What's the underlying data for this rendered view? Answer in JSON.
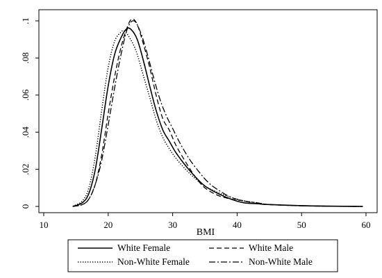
{
  "chart_data": {
    "type": "line",
    "title": "",
    "xlabel": "BMI",
    "ylabel": "",
    "xlim": [
      10,
      60
    ],
    "ylim": [
      0,
      0.1
    ],
    "x_ticks": [
      10,
      20,
      30,
      40,
      50,
      60
    ],
    "x_tick_labels": [
      "10",
      "20",
      "30",
      "40",
      "50",
      "60"
    ],
    "y_ticks": [
      0,
      0.02,
      0.04,
      0.06,
      0.08,
      0.1
    ],
    "y_tick_labels": [
      "0",
      ".02",
      ".04",
      ".06",
      ".08",
      ".1"
    ],
    "grid": false,
    "legend_position": "bottom",
    "series": [
      {
        "name": "White Female",
        "style": "solid",
        "points": [
          [
            14.5,
            0
          ],
          [
            16,
            0.002
          ],
          [
            17,
            0.007
          ],
          [
            18,
            0.02
          ],
          [
            19,
            0.042
          ],
          [
            20,
            0.065
          ],
          [
            21,
            0.082
          ],
          [
            22,
            0.091
          ],
          [
            22.8,
            0.0955
          ],
          [
            23.5,
            0.0955
          ],
          [
            24.5,
            0.09
          ],
          [
            25.5,
            0.078
          ],
          [
            26.5,
            0.064
          ],
          [
            27.5,
            0.051
          ],
          [
            28.5,
            0.041
          ],
          [
            29.5,
            0.035
          ],
          [
            30.5,
            0.029
          ],
          [
            32,
            0.022
          ],
          [
            33.5,
            0.016
          ],
          [
            35,
            0.011
          ],
          [
            37,
            0.007
          ],
          [
            39,
            0.004
          ],
          [
            41,
            0.002
          ],
          [
            43,
            0.0015
          ],
          [
            45,
            0.001
          ],
          [
            50,
            0.0004
          ],
          [
            55,
            0.0001
          ],
          [
            59.5,
            0
          ]
        ]
      },
      {
        "name": "White Male",
        "style": "dashed",
        "points": [
          [
            14.5,
            0
          ],
          [
            16,
            0.001
          ],
          [
            17,
            0.004
          ],
          [
            18,
            0.012
          ],
          [
            19,
            0.028
          ],
          [
            20,
            0.05
          ],
          [
            21,
            0.07
          ],
          [
            22,
            0.086
          ],
          [
            23,
            0.097
          ],
          [
            23.7,
            0.101
          ],
          [
            24.5,
            0.098
          ],
          [
            25.5,
            0.087
          ],
          [
            26.5,
            0.074
          ],
          [
            27.5,
            0.059
          ],
          [
            28.5,
            0.047
          ],
          [
            29.5,
            0.041
          ],
          [
            30.5,
            0.033
          ],
          [
            32,
            0.024
          ],
          [
            33.5,
            0.016
          ],
          [
            35,
            0.01
          ],
          [
            37,
            0.006
          ],
          [
            39,
            0.004
          ],
          [
            41,
            0.003
          ],
          [
            43,
            0.0015
          ],
          [
            45,
            0.001
          ],
          [
            50,
            0.0003
          ],
          [
            55,
            0.0001
          ],
          [
            59.5,
            0
          ]
        ]
      },
      {
        "name": "Non-White Female",
        "style": "dotted",
        "points": [
          [
            14.5,
            0
          ],
          [
            16,
            0.003
          ],
          [
            17,
            0.01
          ],
          [
            18,
            0.027
          ],
          [
            19,
            0.052
          ],
          [
            20,
            0.075
          ],
          [
            21,
            0.089
          ],
          [
            22,
            0.094
          ],
          [
            22.5,
            0.0945
          ],
          [
            23.3,
            0.091
          ],
          [
            24.3,
            0.084
          ],
          [
            25.5,
            0.07
          ],
          [
            26.5,
            0.058
          ],
          [
            27.5,
            0.046
          ],
          [
            28.5,
            0.037
          ],
          [
            29.5,
            0.031
          ],
          [
            30.5,
            0.026
          ],
          [
            32,
            0.02
          ],
          [
            33.5,
            0.015
          ],
          [
            35,
            0.011
          ],
          [
            37,
            0.0075
          ],
          [
            39,
            0.005
          ],
          [
            41,
            0.003
          ],
          [
            43,
            0.002
          ],
          [
            45,
            0.001
          ],
          [
            50,
            0.0004
          ],
          [
            55,
            0.0001
          ],
          [
            59.5,
            0
          ]
        ]
      },
      {
        "name": "Non-White Male",
        "style": "dashdot",
        "points": [
          [
            14.5,
            0
          ],
          [
            16,
            0.001
          ],
          [
            17,
            0.004
          ],
          [
            18,
            0.012
          ],
          [
            19,
            0.025
          ],
          [
            20,
            0.044
          ],
          [
            21,
            0.064
          ],
          [
            22,
            0.082
          ],
          [
            23,
            0.096
          ],
          [
            24,
            0.1
          ],
          [
            25,
            0.094
          ],
          [
            26,
            0.083
          ],
          [
            27,
            0.07
          ],
          [
            28,
            0.058
          ],
          [
            29,
            0.049
          ],
          [
            30,
            0.042
          ],
          [
            31,
            0.035
          ],
          [
            32.5,
            0.026
          ],
          [
            34,
            0.019
          ],
          [
            35.5,
            0.013
          ],
          [
            37,
            0.009
          ],
          [
            39,
            0.005
          ],
          [
            41,
            0.003
          ],
          [
            43,
            0.002
          ],
          [
            45,
            0.001
          ],
          [
            50,
            0.0004
          ],
          [
            55,
            0.0001
          ],
          [
            59.5,
            0
          ]
        ]
      }
    ]
  }
}
